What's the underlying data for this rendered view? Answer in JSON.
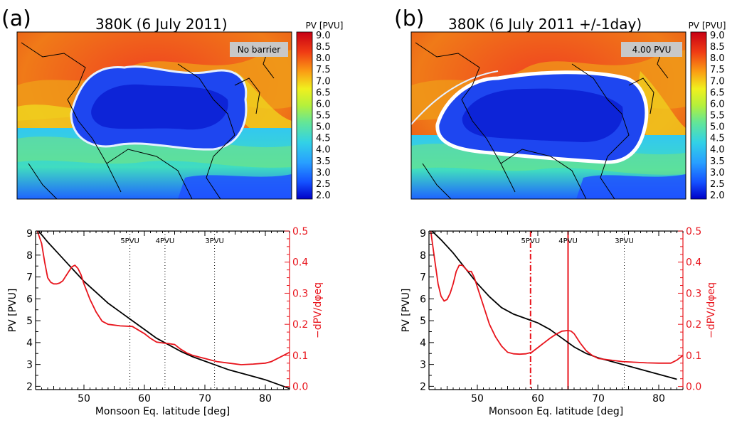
{
  "chart_data": [
    {
      "type": "heatmap",
      "panel_label": "(a)",
      "title": "380K (6 July 2011)",
      "colorbar_label": "PV [PVU]",
      "colorbar_ticks": [
        "9.0",
        "8.5",
        "8.0",
        "7.5",
        "7.0",
        "6.5",
        "6.0",
        "5.5",
        "5.0",
        "4.5",
        "4.0",
        "3.5",
        "3.0",
        "2.5",
        "2.0"
      ],
      "badge": "No barrier"
    },
    {
      "type": "heatmap",
      "panel_label": "(b)",
      "title": "380K (6 July 2011 +/-1day)",
      "colorbar_label": "PV [PVU]",
      "colorbar_ticks": [
        "9.0",
        "8.5",
        "8.0",
        "7.5",
        "7.0",
        "6.5",
        "6.0",
        "5.5",
        "5.0",
        "4.5",
        "4.0",
        "3.5",
        "3.0",
        "2.5",
        "2.0"
      ],
      "badge": "4.00 PVU"
    },
    {
      "type": "line",
      "xlabel": "Monsoon Eq. latitude [deg]",
      "ylabel": "PV [PVU]",
      "ylabel_right": "−dPV/dφeq",
      "xlim": [
        42,
        84
      ],
      "ylim": [
        1.85,
        9.1
      ],
      "ylim_right": [
        -0.01,
        0.5
      ],
      "xticks": [
        50,
        60,
        70,
        80
      ],
      "yticks": [
        2,
        3,
        4,
        5,
        6,
        7,
        8,
        9
      ],
      "yticks_right": [
        "0.0",
        "0.1",
        "0.2",
        "0.3",
        "0.4",
        "0.5"
      ],
      "yticks_right_values": [
        0.0,
        0.1,
        0.2,
        0.3,
        0.4,
        0.5
      ],
      "vlines": [
        {
          "x": 57.6,
          "label": "5PVU",
          "style": "dotted"
        },
        {
          "x": 63.4,
          "label": "4PVU",
          "style": "dotted"
        },
        {
          "x": 71.6,
          "label": "3PVU",
          "style": "dotted"
        }
      ],
      "series": [
        {
          "color": "#000000",
          "axis": "left",
          "x": [
            42.5,
            44,
            46,
            48,
            50,
            52,
            54,
            56,
            58,
            60,
            62,
            64,
            66,
            68,
            70,
            72,
            74,
            76,
            78,
            80,
            82,
            84
          ],
          "y": [
            9.1,
            8.6,
            8.0,
            7.4,
            6.8,
            6.3,
            5.8,
            5.4,
            5.0,
            4.6,
            4.2,
            3.9,
            3.6,
            3.35,
            3.15,
            2.95,
            2.75,
            2.6,
            2.45,
            2.3,
            2.1,
            1.9
          ]
        },
        {
          "color": "#e8141c",
          "axis": "right",
          "x": [
            42.3,
            43,
            43.5,
            44,
            44.5,
            45,
            45.5,
            46,
            46.5,
            47,
            47.5,
            48,
            48.5,
            49,
            49.5,
            50,
            51,
            52,
            53,
            54,
            56,
            58,
            60,
            61,
            62,
            63,
            64,
            65,
            66,
            67,
            68,
            69,
            70,
            71,
            72,
            74,
            76,
            78,
            80,
            81,
            82,
            83,
            84
          ],
          "y": [
            0.5,
            0.46,
            0.4,
            0.35,
            0.335,
            0.33,
            0.33,
            0.333,
            0.34,
            0.355,
            0.37,
            0.385,
            0.39,
            0.38,
            0.36,
            0.33,
            0.28,
            0.24,
            0.21,
            0.2,
            0.195,
            0.193,
            0.17,
            0.155,
            0.143,
            0.14,
            0.138,
            0.135,
            0.12,
            0.108,
            0.1,
            0.095,
            0.09,
            0.085,
            0.08,
            0.075,
            0.07,
            0.072,
            0.075,
            0.08,
            0.09,
            0.1,
            0.11
          ]
        }
      ]
    },
    {
      "type": "line",
      "xlabel": "Monsoon Eq. latitude [deg]",
      "ylabel": "PV [PVU]",
      "ylabel_right": "−dPV/dφeq",
      "xlim": [
        42,
        84
      ],
      "ylim": [
        1.85,
        9.1
      ],
      "ylim_right": [
        -0.01,
        0.5
      ],
      "xticks": [
        50,
        60,
        70,
        80
      ],
      "yticks": [
        2,
        3,
        4,
        5,
        6,
        7,
        8,
        9
      ],
      "yticks_right": [
        "0.0",
        "0.1",
        "0.2",
        "0.3",
        "0.4",
        "0.5"
      ],
      "yticks_right_values": [
        0.0,
        0.1,
        0.2,
        0.3,
        0.4,
        0.5
      ],
      "vlines": [
        {
          "x": 58.8,
          "label": "5PVU",
          "style": "dashdot"
        },
        {
          "x": 65.0,
          "label": "4PVU",
          "style": "solid"
        },
        {
          "x": 74.3,
          "label": "3PVU",
          "style": "dotted"
        }
      ],
      "series": [
        {
          "color": "#000000",
          "axis": "left",
          "x": [
            42.5,
            44,
            46,
            48,
            50,
            52,
            54,
            56,
            58,
            60,
            62,
            64,
            66,
            68,
            70,
            72,
            74,
            76,
            78,
            80,
            82,
            83
          ],
          "y": [
            9.1,
            8.7,
            8.1,
            7.4,
            6.7,
            6.1,
            5.6,
            5.3,
            5.1,
            4.9,
            4.6,
            4.2,
            3.8,
            3.5,
            3.3,
            3.15,
            3.0,
            2.85,
            2.7,
            2.55,
            2.4,
            2.32
          ]
        },
        {
          "color": "#e8141c",
          "axis": "right",
          "x": [
            42.3,
            43,
            43.5,
            44,
            44.5,
            45,
            45.5,
            46,
            46.5,
            47,
            47.5,
            48,
            48.5,
            49,
            49.5,
            50,
            51,
            52,
            53,
            54,
            55,
            56,
            57,
            58,
            59,
            60,
            61,
            62,
            63,
            64,
            65,
            65.5,
            66,
            67,
            68,
            69,
            70,
            72,
            74,
            76,
            78,
            80,
            82,
            83,
            84
          ],
          "y": [
            0.5,
            0.4,
            0.33,
            0.29,
            0.275,
            0.28,
            0.3,
            0.33,
            0.37,
            0.39,
            0.39,
            0.38,
            0.37,
            0.37,
            0.35,
            0.32,
            0.26,
            0.2,
            0.16,
            0.13,
            0.11,
            0.105,
            0.104,
            0.105,
            0.11,
            0.125,
            0.14,
            0.155,
            0.168,
            0.178,
            0.18,
            0.178,
            0.17,
            0.14,
            0.115,
            0.1,
            0.09,
            0.085,
            0.08,
            0.078,
            0.076,
            0.075,
            0.075,
            0.085,
            0.1
          ]
        }
      ]
    }
  ],
  "colors": {
    "pv_scale": [
      "#0000c8",
      "#0a28ff",
      "#1e64ff",
      "#2898ff",
      "#28c8f0",
      "#3cdcc8",
      "#78e678",
      "#b4f03c",
      "#e6f01e",
      "#fad214",
      "#fa9614",
      "#f05a14",
      "#e61e14",
      "#c80014"
    ],
    "line_black": "#000000",
    "line_red": "#e8141c"
  }
}
